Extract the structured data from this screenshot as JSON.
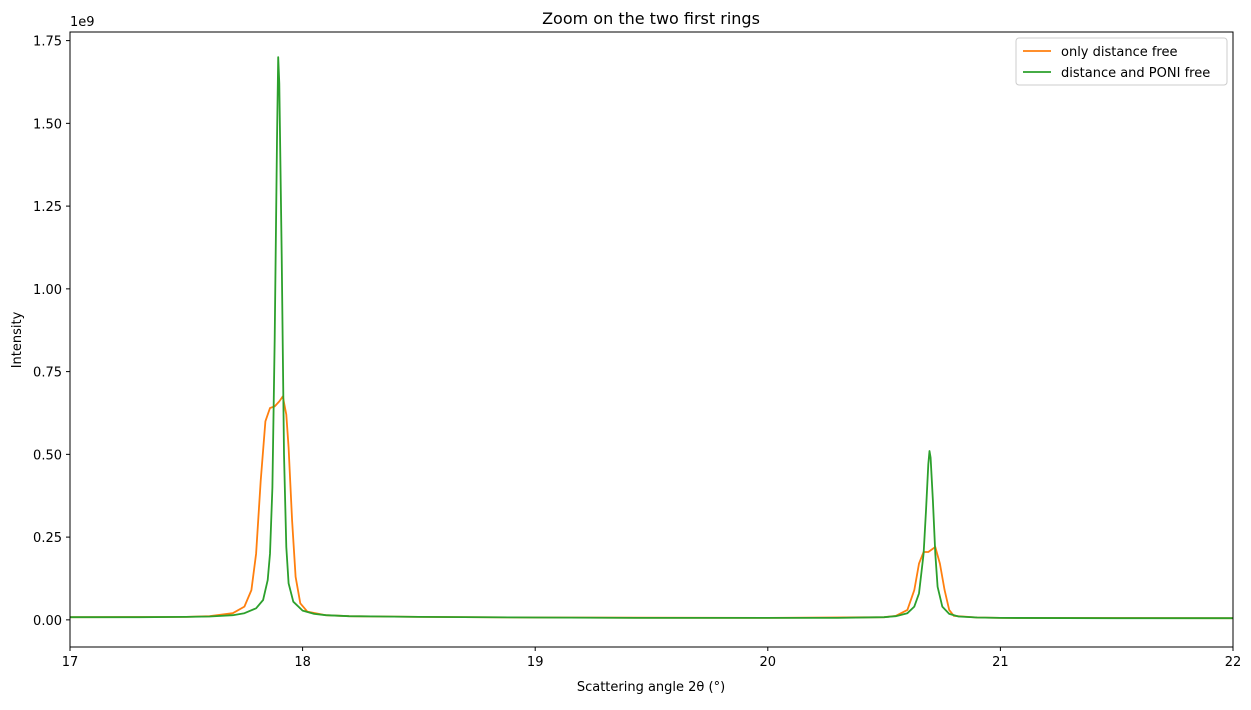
{
  "chart_data": {
    "type": "line",
    "title": "Zoom on the two first rings",
    "xlabel": "Scattering angle 2θ (°)",
    "ylabel": "Intensity",
    "y_offset_label": "1e9",
    "xlim": [
      17,
      22
    ],
    "ylim": [
      -0.082,
      1.776
    ],
    "x_ticks": [
      "17",
      "18",
      "19",
      "20",
      "21",
      "22"
    ],
    "y_ticks": [
      "0.00",
      "0.25",
      "0.50",
      "0.75",
      "1.00",
      "1.25",
      "1.50",
      "1.75"
    ],
    "grid": false,
    "legend_position": "top-right",
    "y_unit_scale": "1e9",
    "series": [
      {
        "name": "only distance free",
        "color": "#ff7f0e",
        "x": [
          17.0,
          17.5,
          17.6,
          17.7,
          17.75,
          17.78,
          17.8,
          17.82,
          17.84,
          17.86,
          17.88,
          17.9,
          17.915,
          17.93,
          17.94,
          17.955,
          17.97,
          17.99,
          18.02,
          18.1,
          18.2,
          18.5,
          19.0,
          20.0,
          20.5,
          20.55,
          20.6,
          20.63,
          20.65,
          20.67,
          20.69,
          20.72,
          20.74,
          20.76,
          20.78,
          20.8,
          20.9,
          21.0,
          22.0
        ],
        "y": [
          0.008,
          0.009,
          0.011,
          0.02,
          0.04,
          0.09,
          0.2,
          0.42,
          0.6,
          0.64,
          0.645,
          0.66,
          0.675,
          0.62,
          0.52,
          0.3,
          0.13,
          0.05,
          0.025,
          0.014,
          0.011,
          0.009,
          0.007,
          0.006,
          0.008,
          0.012,
          0.03,
          0.09,
          0.17,
          0.205,
          0.205,
          0.22,
          0.17,
          0.09,
          0.03,
          0.012,
          0.007,
          0.006,
          0.005
        ]
      },
      {
        "name": "distance and PONI free",
        "color": "#2ca02c",
        "x": [
          17.0,
          17.3,
          17.5,
          17.6,
          17.7,
          17.75,
          17.8,
          17.83,
          17.85,
          17.86,
          17.87,
          17.88,
          17.89,
          17.895,
          17.9,
          17.91,
          17.92,
          17.93,
          17.94,
          17.96,
          18.0,
          18.05,
          18.1,
          18.2,
          18.5,
          19.0,
          19.5,
          20.0,
          20.3,
          20.5,
          20.55,
          20.6,
          20.63,
          20.65,
          20.67,
          20.68,
          20.69,
          20.695,
          20.7,
          20.71,
          20.72,
          20.73,
          20.75,
          20.78,
          20.82,
          20.9,
          21.0,
          21.5,
          22.0
        ],
        "y": [
          0.008,
          0.008,
          0.009,
          0.01,
          0.014,
          0.02,
          0.035,
          0.06,
          0.12,
          0.2,
          0.4,
          0.85,
          1.45,
          1.7,
          1.62,
          1.1,
          0.5,
          0.22,
          0.11,
          0.055,
          0.028,
          0.018,
          0.014,
          0.011,
          0.009,
          0.007,
          0.006,
          0.006,
          0.006,
          0.008,
          0.011,
          0.02,
          0.04,
          0.08,
          0.2,
          0.33,
          0.47,
          0.51,
          0.49,
          0.36,
          0.2,
          0.1,
          0.04,
          0.018,
          0.01,
          0.007,
          0.006,
          0.005,
          0.005
        ]
      }
    ]
  }
}
